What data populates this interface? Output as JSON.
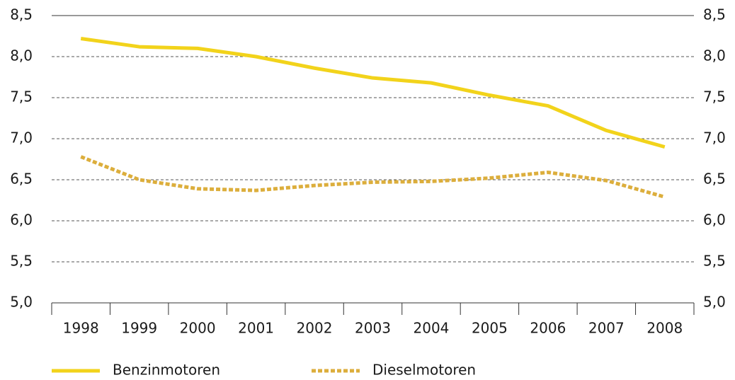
{
  "chart_data": {
    "type": "line",
    "categories": [
      "1998",
      "1999",
      "2000",
      "2001",
      "2002",
      "2003",
      "2004",
      "2005",
      "2006",
      "2007",
      "2008"
    ],
    "series": [
      {
        "name": "Benzinmotoren",
        "color": "#f2d31b",
        "style": "solid",
        "values": [
          8.22,
          8.12,
          8.1,
          8.0,
          7.86,
          7.74,
          7.68,
          7.53,
          7.4,
          7.1,
          6.9
        ]
      },
      {
        "name": "Dieselmotoren",
        "color": "#dcae3c",
        "style": "dotted",
        "values": [
          6.78,
          6.5,
          6.39,
          6.37,
          6.43,
          6.47,
          6.48,
          6.52,
          6.59,
          6.49,
          6.29
        ]
      }
    ],
    "ylim": [
      5,
      8.5
    ],
    "yticks": [
      {
        "value": 5,
        "label": "5,0"
      },
      {
        "value": 5.5,
        "label": "5,5"
      },
      {
        "value": 6,
        "label": "6,0"
      },
      {
        "value": 6.5,
        "label": "6,5"
      },
      {
        "value": 7,
        "label": "7,0"
      },
      {
        "value": 7.5,
        "label": "7,5"
      },
      {
        "value": 8,
        "label": "8,0"
      },
      {
        "value": 8.5,
        "label": "8,5"
      }
    ],
    "grid": true
  }
}
